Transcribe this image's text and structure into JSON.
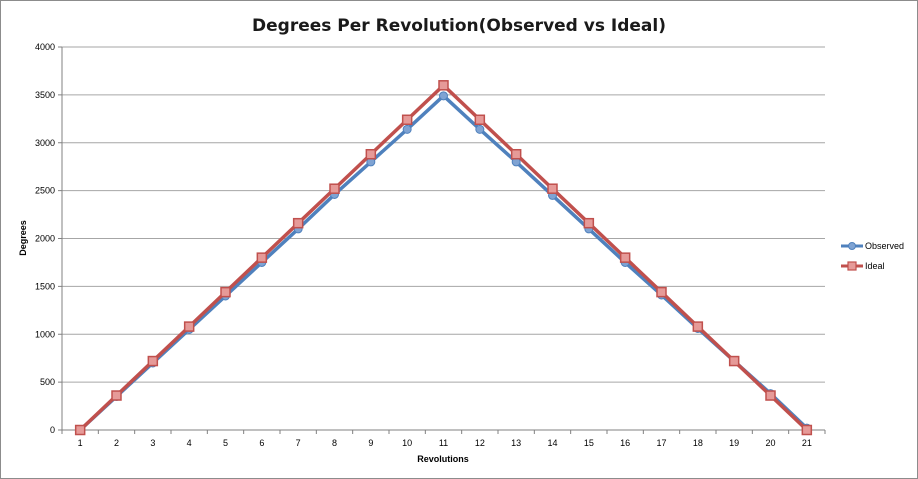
{
  "chart_data": {
    "type": "line",
    "title": "Degrees Per Revolution(Observed vs Ideal)",
    "xlabel": "Revolutions",
    "ylabel": "Degrees",
    "categories": [
      "1",
      "2",
      "3",
      "4",
      "5",
      "6",
      "7",
      "8",
      "9",
      "10",
      "11",
      "12",
      "13",
      "14",
      "15",
      "16",
      "17",
      "18",
      "19",
      "20",
      "21"
    ],
    "ylim": [
      0,
      4000
    ],
    "yticks": [
      0,
      500,
      1000,
      1500,
      2000,
      2500,
      3000,
      3500,
      4000
    ],
    "grid": true,
    "legend_position": "right",
    "series": [
      {
        "name": "Observed",
        "color": "#4f81bd",
        "marker": "diamond",
        "values": [
          0,
          350,
          700,
          1050,
          1400,
          1750,
          2100,
          2460,
          2800,
          3140,
          3490,
          3140,
          2800,
          2450,
          2100,
          1750,
          1410,
          1060,
          720,
          380,
          20
        ]
      },
      {
        "name": "Ideal",
        "color": "#c0504d",
        "marker": "square",
        "values": [
          0,
          360,
          720,
          1080,
          1440,
          1800,
          2160,
          2520,
          2880,
          3240,
          3600,
          3240,
          2880,
          2520,
          2160,
          1800,
          1440,
          1080,
          720,
          360,
          0
        ]
      }
    ]
  }
}
